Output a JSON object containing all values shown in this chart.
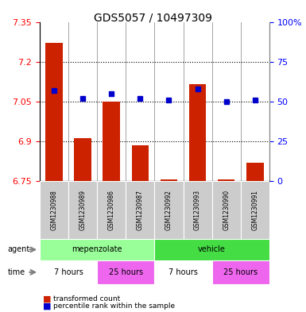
{
  "title": "GDS5057 / 10497309",
  "samples": [
    "GSM1230988",
    "GSM1230989",
    "GSM1230986",
    "GSM1230987",
    "GSM1230992",
    "GSM1230993",
    "GSM1230990",
    "GSM1230991"
  ],
  "red_values": [
    7.27,
    6.91,
    7.05,
    6.885,
    6.755,
    7.115,
    6.755,
    6.82
  ],
  "blue_values_pct": [
    57,
    52,
    55,
    52,
    51,
    58,
    50,
    51
  ],
  "y_min": 6.75,
  "y_max": 7.35,
  "y_ticks": [
    6.75,
    6.9,
    7.05,
    7.2,
    7.35
  ],
  "y_tick_labels": [
    "6.75",
    "6.9",
    "7.05",
    "7.2",
    "7.35"
  ],
  "y2_ticks": [
    0,
    25,
    50,
    75,
    100
  ],
  "y2_tick_labels": [
    "0",
    "25",
    "50",
    "75",
    "100%"
  ],
  "dotted_lines": [
    7.2,
    7.05,
    6.9
  ],
  "bar_width": 0.6,
  "bar_color": "#CC2200",
  "dot_color": "#0000CC",
  "agent_mepenzolate_color": "#99FF99",
  "agent_vehicle_color": "#44DD44",
  "time_7h_color": "#FFFFFF",
  "time_25h_color": "#EE66EE",
  "sample_bg_color": "#CCCCCC",
  "legend_red_label": "transformed count",
  "legend_blue_label": "percentile rank within the sample",
  "times": [
    "7 hours",
    "25 hours",
    "7 hours",
    "25 hours"
  ],
  "time_colors": [
    "#FFFFFF",
    "#EE66EE",
    "#FFFFFF",
    "#EE66EE"
  ]
}
